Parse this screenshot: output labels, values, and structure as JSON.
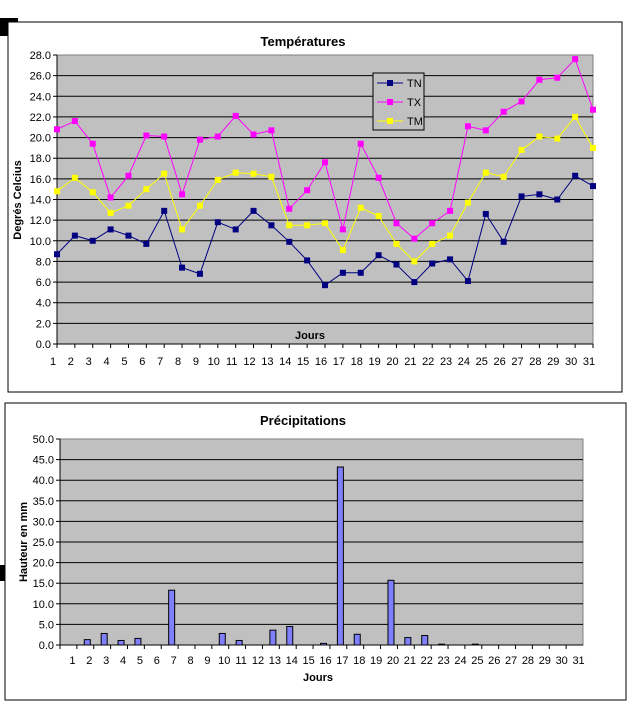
{
  "chart_data": [
    {
      "type": "line",
      "title": "Températures",
      "xlabel": "Jours",
      "ylabel": "Degrés Celcius",
      "ylim": [
        0,
        28
      ],
      "yticks": [
        "0.0",
        "2.0",
        "4.0",
        "6.0",
        "8.0",
        "10.0",
        "12.0",
        "14.0",
        "16.0",
        "18.0",
        "20.0",
        "22.0",
        "24.0",
        "26.0",
        "28.0"
      ],
      "categories": [
        "1",
        "2",
        "3",
        "4",
        "5",
        "6",
        "7",
        "8",
        "9",
        "10",
        "11",
        "12",
        "13",
        "14",
        "15",
        "16",
        "17",
        "18",
        "19",
        "20",
        "21",
        "22",
        "23",
        "24",
        "25",
        "26",
        "27",
        "28",
        "29",
        "30",
        "31"
      ],
      "grid": true,
      "legend": "top-right",
      "series": [
        {
          "name": "TN",
          "color": "#000080",
          "values": [
            8.7,
            10.5,
            10.0,
            11.1,
            10.5,
            9.7,
            12.9,
            7.4,
            6.8,
            11.8,
            11.1,
            12.9,
            11.5,
            9.9,
            8.1,
            5.7,
            6.9,
            6.9,
            8.6,
            7.7,
            6.0,
            7.8,
            8.2,
            6.1,
            12.6,
            9.9,
            14.3,
            14.5,
            14.0,
            16.3,
            15.3
          ]
        },
        {
          "name": "TX",
          "color": "#FF00FF",
          "values": [
            20.8,
            21.6,
            19.4,
            14.2,
            16.3,
            20.2,
            20.1,
            14.5,
            19.8,
            20.1,
            22.1,
            20.3,
            20.7,
            13.1,
            14.9,
            17.6,
            11.1,
            19.4,
            16.1,
            11.7,
            10.2,
            11.7,
            12.9,
            21.1,
            20.7,
            22.5,
            23.5,
            25.6,
            25.8,
            27.6,
            22.7
          ]
        },
        {
          "name": "TM",
          "color": "#FFFF00",
          "values": [
            14.8,
            16.1,
            14.7,
            12.7,
            13.4,
            15.0,
            16.5,
            11.1,
            13.4,
            15.9,
            16.6,
            16.5,
            16.2,
            11.5,
            11.5,
            11.7,
            9.1,
            13.2,
            12.4,
            9.7,
            8.0,
            9.7,
            10.5,
            13.7,
            16.6,
            16.2,
            18.8,
            20.1,
            19.9,
            22.0,
            19.0
          ]
        }
      ]
    },
    {
      "type": "bar",
      "title": "Précipitations",
      "xlabel": "Jours",
      "ylabel": "Hauteur en mm",
      "ylim": [
        0,
        50
      ],
      "yticks": [
        "0.0",
        "5.0",
        "10.0",
        "15.0",
        "20.0",
        "25.0",
        "30.0",
        "35.0",
        "40.0",
        "45.0",
        "50.0"
      ],
      "categories": [
        "1",
        "2",
        "3",
        "4",
        "5",
        "6",
        "7",
        "8",
        "9",
        "10",
        "11",
        "12",
        "13",
        "14",
        "15",
        "16",
        "17",
        "18",
        "19",
        "20",
        "21",
        "22",
        "23",
        "24",
        "25",
        "26",
        "27",
        "28",
        "29",
        "30",
        "31"
      ],
      "grid": true,
      "color": "#8080FF",
      "values": [
        0,
        1.3,
        2.8,
        1.1,
        1.6,
        0,
        13.3,
        0,
        0,
        2.8,
        1.1,
        0,
        3.6,
        4.5,
        0,
        0.4,
        43.2,
        2.6,
        0,
        15.7,
        1.8,
        2.3,
        0.2,
        0,
        0.2,
        0,
        0,
        0,
        0,
        0,
        0
      ]
    }
  ]
}
